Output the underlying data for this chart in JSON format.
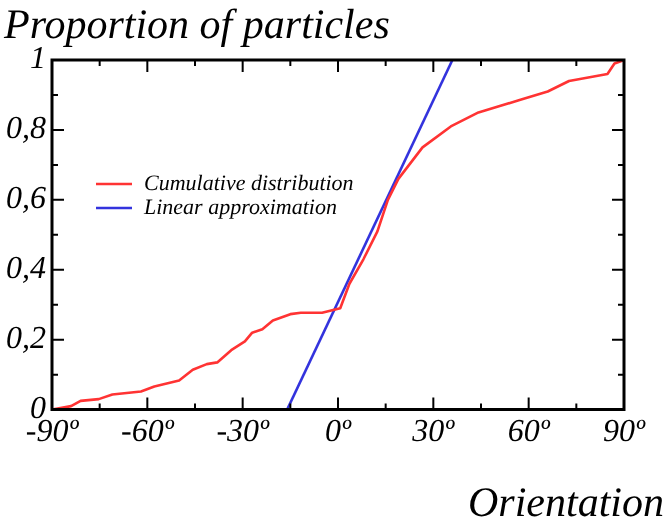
{
  "chart_data": {
    "type": "line",
    "ylabel": "Proportion of particles",
    "xlabel": "Orientation",
    "xlim": [
      -90,
      90
    ],
    "xticks": [
      {
        "value": -90,
        "label": "-90º"
      },
      {
        "value": -60,
        "label": "-60º"
      },
      {
        "value": -30,
        "label": "-30º"
      },
      {
        "value": 0,
        "label": "0º"
      },
      {
        "value": 30,
        "label": "30º"
      },
      {
        "value": 60,
        "label": "60º"
      },
      {
        "value": 90,
        "label": "90º"
      }
    ],
    "ylim": [
      0,
      1
    ],
    "yticks": [
      0,
      {
        "value": 0.2,
        "label": "0,2"
      },
      {
        "value": 0.4,
        "label": "0,4"
      },
      {
        "value": 0.6,
        "label": "0,6"
      },
      {
        "value": 0.8,
        "label": "0,8"
      },
      1
    ],
    "grid": false,
    "legend": "top left",
    "marker": "none",
    "line_style": "solid",
    "series": [
      {
        "name": "Cumulative distribution",
        "color": "#ff3333",
        "x": [
          -90,
          -84,
          -81,
          -75.3,
          -71,
          -62,
          -57.8,
          -50,
          -45.7,
          -41.3,
          -38,
          -33.6,
          -29.3,
          -27,
          -23.8,
          -20.5,
          -15,
          -11.7,
          -5,
          0.7,
          3.6,
          8,
          12.4,
          15.7,
          19,
          26.6,
          35.5,
          44.2,
          57.4,
          66,
          72.7,
          84.8,
          87,
          90
        ],
        "values": [
          0,
          0.01,
          0.025,
          0.03,
          0.043,
          0.052,
          0.066,
          0.083,
          0.114,
          0.13,
          0.135,
          0.17,
          0.195,
          0.22,
          0.23,
          0.255,
          0.273,
          0.277,
          0.277,
          0.29,
          0.36,
          0.43,
          0.51,
          0.6,
          0.66,
          0.75,
          0.81,
          0.85,
          0.886,
          0.91,
          0.94,
          0.96,
          0.99,
          1
        ]
      },
      {
        "name": "Linear approximation",
        "color": "#3333dd",
        "x": [
          -16,
          36
        ],
        "values": [
          0,
          1
        ]
      }
    ]
  }
}
